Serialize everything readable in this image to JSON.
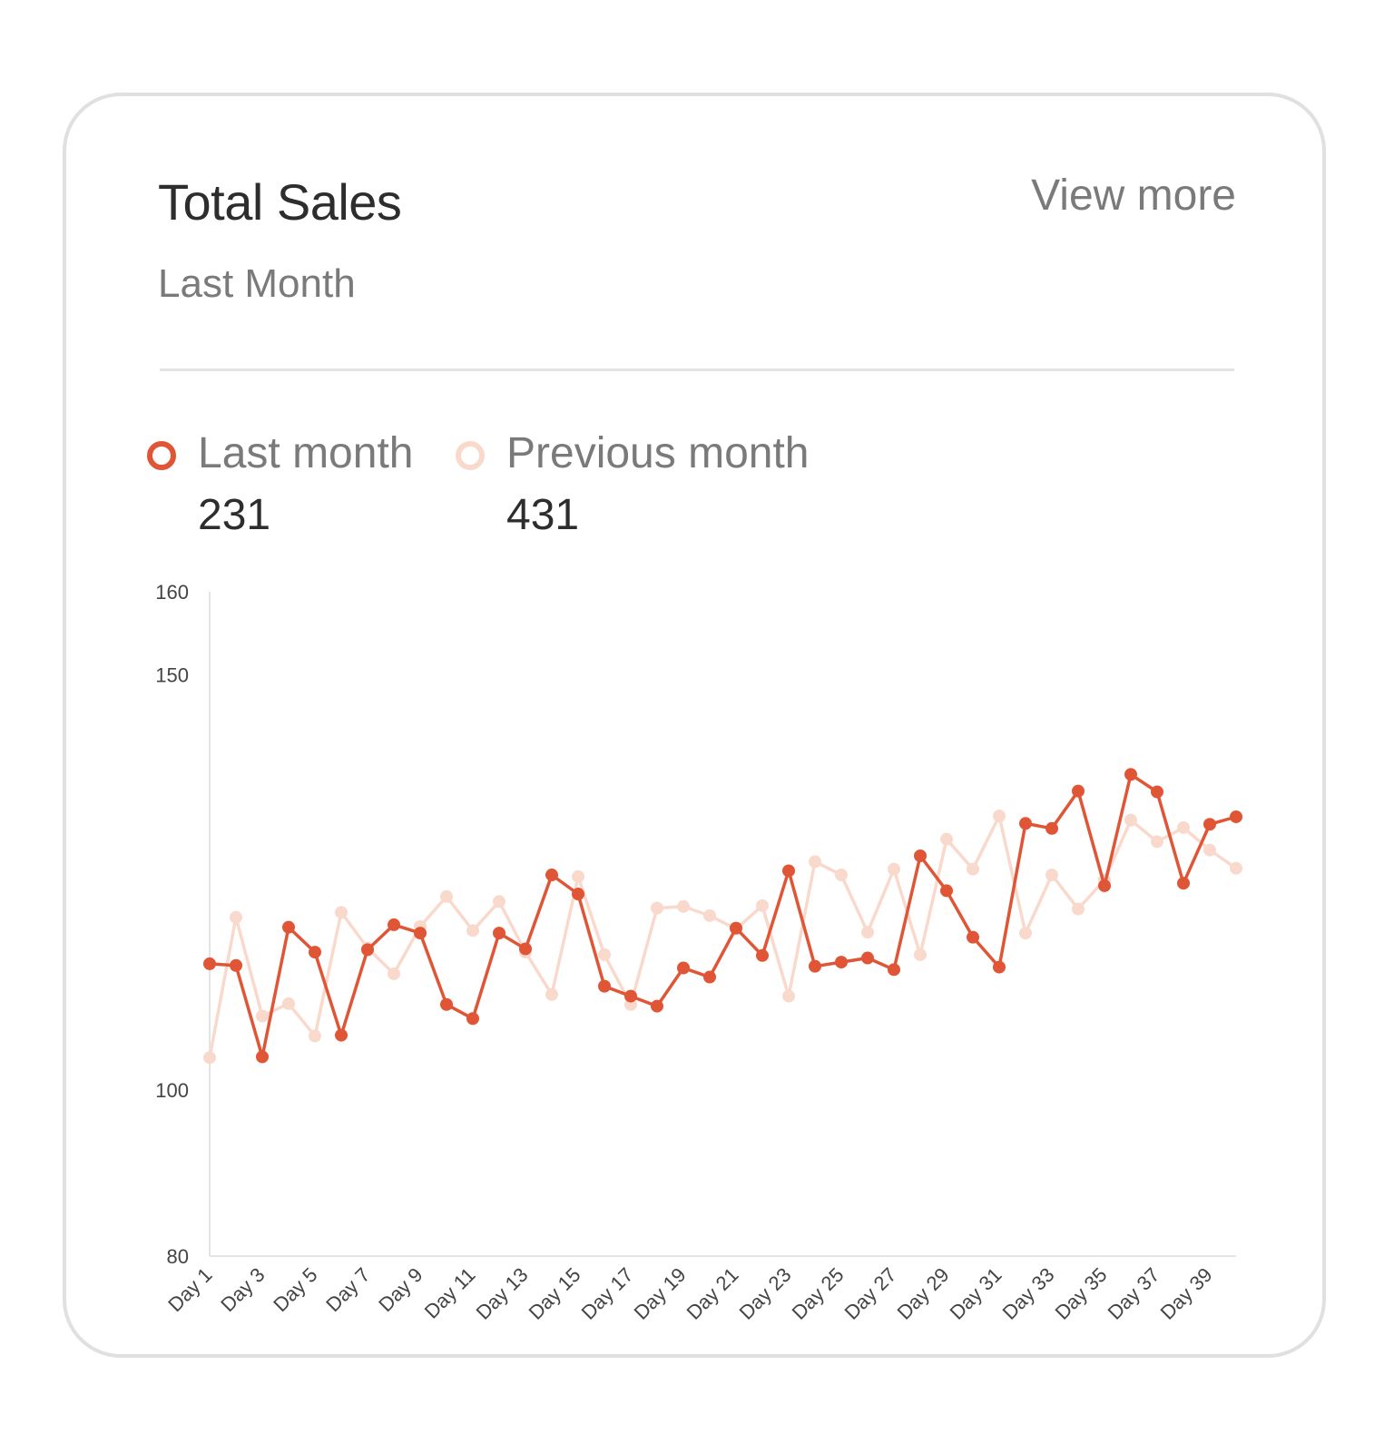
{
  "card": {
    "title": "Total Sales",
    "subtitle": "Last Month",
    "view_more": "View more"
  },
  "legend": [
    {
      "label": "Last month",
      "value": "231",
      "color": "#e05535"
    },
    {
      "label": "Previous month",
      "value": "431",
      "color": "#fad9cd"
    }
  ],
  "chart_data": {
    "type": "line",
    "x": [
      "Day 1",
      "Day 2",
      "Day 3",
      "Day 4",
      "Day 5",
      "Day 6",
      "Day 7",
      "Day 8",
      "Day 9",
      "Day 10",
      "Day 11",
      "Day 12",
      "Day 13",
      "Day 14",
      "Day 15",
      "Day 16",
      "Day 17",
      "Day 18",
      "Day 19",
      "Day 20",
      "Day 21",
      "Day 22",
      "Day 23",
      "Day 24",
      "Day 25",
      "Day 26",
      "Day 27",
      "Day 28",
      "Day 29",
      "Day 30",
      "Day 31",
      "Day 32",
      "Day 33",
      "Day 34",
      "Day 35",
      "Day 36",
      "Day 37",
      "Day 38",
      "Day 39",
      "Day 40"
    ],
    "x_tick_labels": [
      "Day 1",
      "Day 3",
      "Day 5",
      "Day 7",
      "Day 9",
      "Day 11",
      "Day 13",
      "Day 15",
      "Day 17",
      "Day 19",
      "Day 21",
      "Day 23",
      "Day 25",
      "Day 27",
      "Day 29",
      "Day 31",
      "Day 33",
      "Day 35",
      "Day 37",
      "Day 39"
    ],
    "y_ticks": [
      80,
      100,
      150,
      160
    ],
    "ylim": [
      80,
      160
    ],
    "grid": false,
    "legend_position": "top-left",
    "series": [
      {
        "name": "Last month",
        "color": "#e05535",
        "values": [
          115.2,
          115.0,
          104.0,
          119.6,
          116.6,
          106.6,
          116.9,
          119.9,
          118.9,
          110.3,
          108.6,
          118.9,
          117.0,
          125.9,
          123.6,
          112.5,
          111.3,
          110.1,
          114.7,
          113.6,
          119.5,
          116.2,
          126.4,
          114.9,
          115.4,
          115.9,
          114.5,
          128.2,
          124.0,
          118.4,
          114.8,
          132.1,
          131.5,
          136.0,
          124.6,
          138.0,
          135.9,
          124.9,
          132.0,
          132.9
        ]
      },
      {
        "name": "Previous month",
        "color": "#fad9cd",
        "values": [
          103.9,
          120.8,
          108.9,
          110.4,
          106.5,
          121.4,
          117.1,
          114.0,
          119.7,
          123.3,
          119.2,
          122.7,
          116.6,
          111.5,
          125.7,
          116.3,
          110.3,
          121.9,
          122.1,
          121.0,
          119.4,
          122.2,
          111.3,
          127.5,
          125.9,
          119.0,
          126.6,
          116.3,
          130.2,
          126.6,
          133.0,
          118.9,
          125.9,
          121.8,
          125.3,
          132.5,
          129.9,
          131.6,
          128.9,
          126.7
        ]
      }
    ]
  }
}
